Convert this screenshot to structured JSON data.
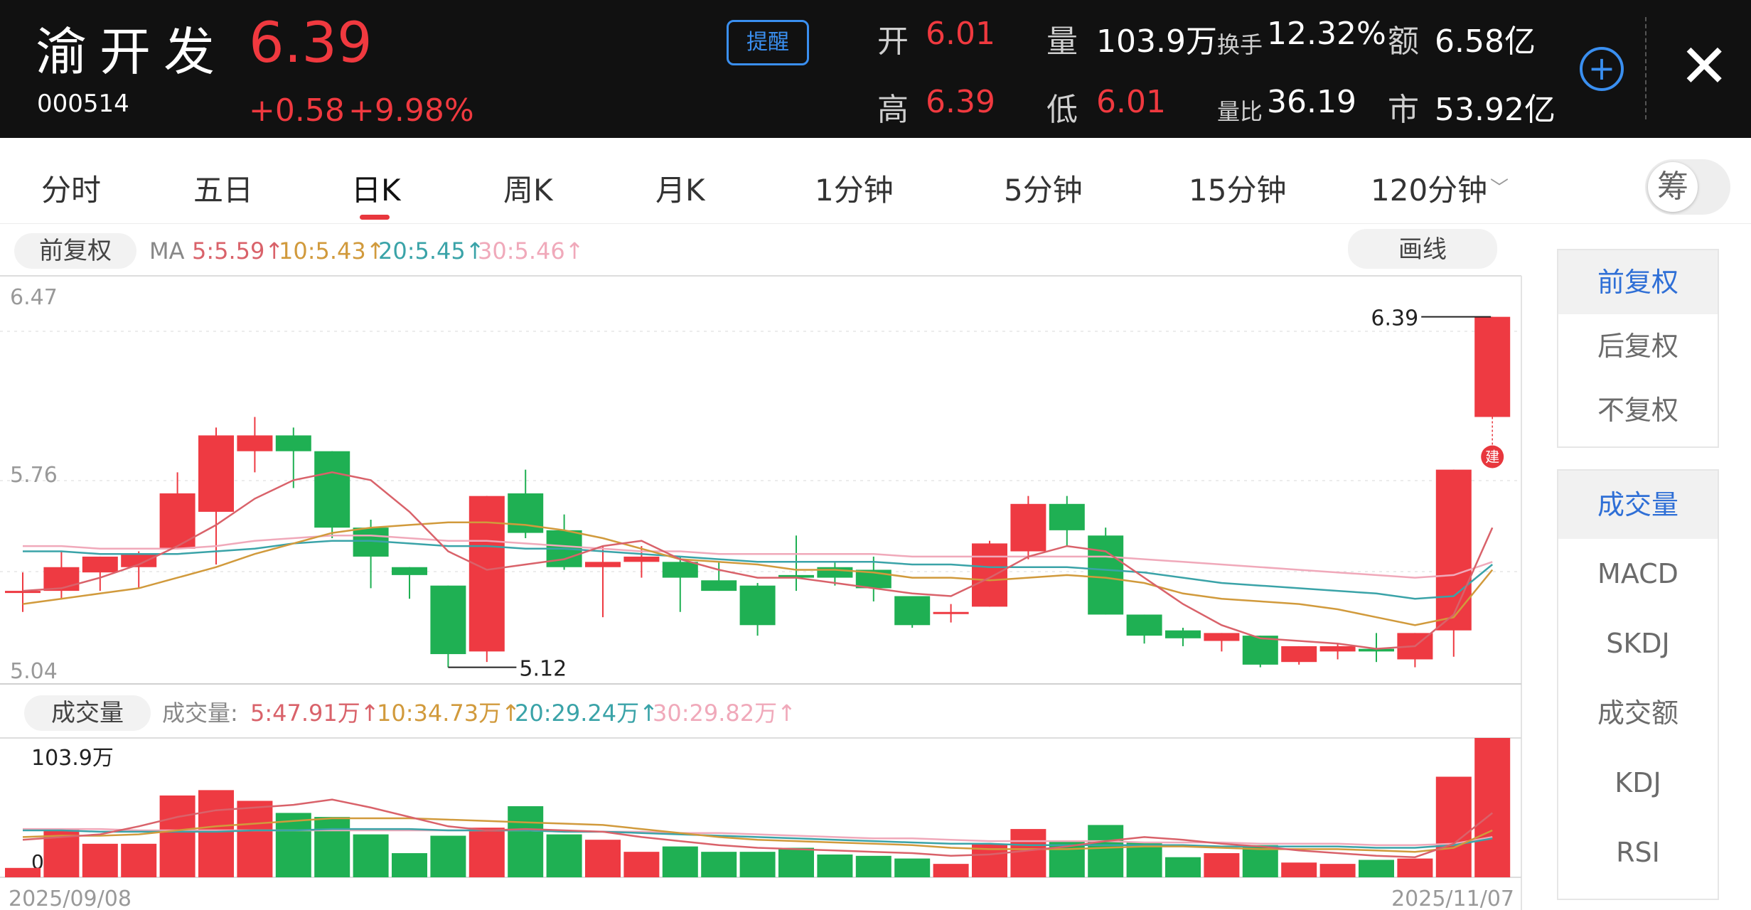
{
  "header": {
    "stock_name": "渝开发",
    "stock_code": "000514",
    "price": "6.39",
    "change": "+0.58",
    "change_pct": "+9.98%",
    "alert_label": "提醒",
    "open_label": "开",
    "open": "6.01",
    "high_label": "高",
    "high": "6.39",
    "volume_label": "量",
    "volume": "103.9万",
    "low_label": "低",
    "low": "6.01",
    "turnover_label": "换手",
    "turnover": "12.32%",
    "vol_ratio_label": "量比",
    "vol_ratio": "36.19",
    "amount_label": "额",
    "amount": "6.58亿",
    "mktcap_label": "市",
    "mktcap": "53.92亿",
    "add_icon": "plus-circle-icon",
    "close_icon": "close-icon"
  },
  "tabs": [
    {
      "label": "分时"
    },
    {
      "label": "五日"
    },
    {
      "label": "日K",
      "active": true
    },
    {
      "label": "周K"
    },
    {
      "label": "月K"
    },
    {
      "label": "1分钟"
    },
    {
      "label": "5分钟"
    },
    {
      "label": "15分钟"
    },
    {
      "label": "120分钟"
    }
  ],
  "chip_toggle_label": "筹",
  "toolbar": {
    "adjust_label": "前复权",
    "draw_label": "画线",
    "ma_prefix": "MA",
    "ma_items": [
      {
        "text": "5:5.59↑",
        "color": "#d9626a"
      },
      {
        "text": "10:5.43↑",
        "color": "#d19a3c"
      },
      {
        "text": "20:5.45↑",
        "color": "#3aa3a8"
      },
      {
        "text": "30:5.46↑",
        "color": "#f0a9ba"
      }
    ],
    "volume_label": "成交量",
    "vol_prefix": "成交量:",
    "vol_items": [
      {
        "text": "5:47.91万↑",
        "color": "#d9626a"
      },
      {
        "text": "10:34.73万↑",
        "color": "#d19a3c"
      },
      {
        "text": "20:29.24万↑",
        "color": "#3aa3a8"
      },
      {
        "text": "30:29.82万↑",
        "color": "#f0a9ba"
      }
    ]
  },
  "colors": {
    "up": "#ee3a42",
    "down": "#1fb053",
    "ma5": "#d9626a",
    "ma10": "#d19a3c",
    "ma20": "#3aa3a8",
    "ma30": "#f0a9ba"
  },
  "chart_data": {
    "type": "candlestick",
    "y_axis_labels": [
      "6.47",
      "5.76",
      "5.04"
    ],
    "ylim": [
      5.04,
      6.47
    ],
    "max_label": "6.39",
    "min_label": "5.12",
    "badge": "建",
    "vol_max_label": "103.9万",
    "vol_zero_label": "0",
    "vol_ylim": [
      0,
      103.9
    ],
    "x_start": "2025/09/08",
    "x_end": "2025/11/07",
    "candles": [
      {
        "o": 5.35,
        "c": 5.35,
        "h": 5.42,
        "l": 5.27,
        "v": 7
      },
      {
        "o": 5.35,
        "c": 5.44,
        "h": 5.5,
        "l": 5.32,
        "v": 36
      },
      {
        "o": 5.42,
        "c": 5.48,
        "h": 5.48,
        "l": 5.35,
        "v": 25
      },
      {
        "o": 5.44,
        "c": 5.49,
        "h": 5.5,
        "l": 5.36,
        "v": 25
      },
      {
        "o": 5.51,
        "c": 5.72,
        "h": 5.8,
        "l": 5.51,
        "v": 61
      },
      {
        "o": 5.65,
        "c": 5.94,
        "h": 5.97,
        "l": 5.45,
        "v": 65
      },
      {
        "o": 5.88,
        "c": 5.94,
        "h": 6.01,
        "l": 5.8,
        "v": 57
      },
      {
        "o": 5.94,
        "c": 5.88,
        "h": 5.97,
        "l": 5.74,
        "v": 48
      },
      {
        "o": 5.88,
        "c": 5.59,
        "h": 5.88,
        "l": 5.55,
        "v": 45
      },
      {
        "o": 5.59,
        "c": 5.48,
        "h": 5.62,
        "l": 5.36,
        "v": 32
      },
      {
        "o": 5.44,
        "c": 5.41,
        "h": 5.44,
        "l": 5.32,
        "v": 18
      },
      {
        "o": 5.37,
        "c": 5.11,
        "h": 5.37,
        "l": 5.06,
        "v": 31
      },
      {
        "o": 5.12,
        "c": 5.71,
        "h": 5.71,
        "l": 5.08,
        "v": 37
      },
      {
        "o": 5.72,
        "c": 5.57,
        "h": 5.81,
        "l": 5.55,
        "v": 53
      },
      {
        "o": 5.58,
        "c": 5.44,
        "h": 5.64,
        "l": 5.43,
        "v": 32
      },
      {
        "o": 5.44,
        "c": 5.46,
        "h": 5.52,
        "l": 5.25,
        "v": 28
      },
      {
        "o": 5.46,
        "c": 5.48,
        "h": 5.52,
        "l": 5.4,
        "v": 19
      },
      {
        "o": 5.46,
        "c": 5.4,
        "h": 5.48,
        "l": 5.27,
        "v": 23
      },
      {
        "o": 5.39,
        "c": 5.35,
        "h": 5.46,
        "l": 5.35,
        "v": 19
      },
      {
        "o": 5.37,
        "c": 5.22,
        "h": 5.38,
        "l": 5.18,
        "v": 19
      },
      {
        "o": 5.41,
        "c": 5.4,
        "h": 5.56,
        "l": 5.35,
        "v": 22
      },
      {
        "o": 5.44,
        "c": 5.4,
        "h": 5.46,
        "l": 5.37,
        "v": 17
      },
      {
        "o": 5.43,
        "c": 5.36,
        "h": 5.48,
        "l": 5.31,
        "v": 16
      },
      {
        "o": 5.33,
        "c": 5.22,
        "h": 5.33,
        "l": 5.21,
        "v": 14
      },
      {
        "o": 5.27,
        "c": 5.27,
        "h": 5.3,
        "l": 5.23,
        "v": 10
      },
      {
        "o": 5.29,
        "c": 5.53,
        "h": 5.54,
        "l": 5.29,
        "v": 25
      },
      {
        "o": 5.5,
        "c": 5.68,
        "h": 5.71,
        "l": 5.47,
        "v": 36
      },
      {
        "o": 5.68,
        "c": 5.58,
        "h": 5.71,
        "l": 5.52,
        "v": 27
      },
      {
        "o": 5.56,
        "c": 5.26,
        "h": 5.59,
        "l": 5.26,
        "v": 39
      },
      {
        "o": 5.26,
        "c": 5.18,
        "h": 5.26,
        "l": 5.15,
        "v": 26
      },
      {
        "o": 5.2,
        "c": 5.17,
        "h": 5.21,
        "l": 5.14,
        "v": 15
      },
      {
        "o": 5.16,
        "c": 5.19,
        "h": 5.19,
        "l": 5.12,
        "v": 18
      },
      {
        "o": 5.18,
        "c": 5.07,
        "h": 5.18,
        "l": 5.06,
        "v": 24
      },
      {
        "o": 5.08,
        "c": 5.14,
        "h": 5.14,
        "l": 5.07,
        "v": 11
      },
      {
        "o": 5.12,
        "c": 5.14,
        "h": 5.15,
        "l": 5.09,
        "v": 10
      },
      {
        "o": 5.13,
        "c": 5.12,
        "h": 5.19,
        "l": 5.08,
        "v": 13
      },
      {
        "o": 5.09,
        "c": 5.19,
        "h": 5.19,
        "l": 5.06,
        "v": 14
      },
      {
        "o": 5.2,
        "c": 5.81,
        "h": 5.81,
        "l": 5.1,
        "v": 75
      },
      {
        "o": 6.01,
        "c": 6.39,
        "h": 6.39,
        "l": 6.01,
        "v": 103.9
      }
    ],
    "ma5": [
      5.35,
      5.36,
      5.4,
      5.45,
      5.52,
      5.6,
      5.7,
      5.77,
      5.8,
      5.77,
      5.65,
      5.5,
      5.43,
      5.45,
      5.47,
      5.52,
      5.54,
      5.47,
      5.43,
      5.4,
      5.4,
      5.38,
      5.36,
      5.34,
      5.33,
      5.4,
      5.48,
      5.52,
      5.5,
      5.4,
      5.3,
      5.22,
      5.17,
      5.16,
      5.15,
      5.13,
      5.14,
      5.26,
      5.59
    ],
    "ma10": [
      5.3,
      5.32,
      5.34,
      5.36,
      5.4,
      5.44,
      5.49,
      5.53,
      5.57,
      5.59,
      5.6,
      5.61,
      5.61,
      5.6,
      5.58,
      5.55,
      5.51,
      5.47,
      5.46,
      5.45,
      5.43,
      5.43,
      5.42,
      5.4,
      5.4,
      5.39,
      5.4,
      5.41,
      5.4,
      5.38,
      5.34,
      5.32,
      5.31,
      5.3,
      5.28,
      5.25,
      5.22,
      5.25,
      5.43
    ],
    "ma20": [
      5.5,
      5.5,
      5.49,
      5.49,
      5.49,
      5.5,
      5.51,
      5.53,
      5.54,
      5.54,
      5.53,
      5.52,
      5.52,
      5.51,
      5.51,
      5.5,
      5.49,
      5.48,
      5.47,
      5.46,
      5.46,
      5.46,
      5.46,
      5.45,
      5.45,
      5.44,
      5.44,
      5.44,
      5.43,
      5.42,
      5.4,
      5.38,
      5.37,
      5.36,
      5.35,
      5.34,
      5.32,
      5.33,
      5.45
    ],
    "ma30": [
      5.52,
      5.52,
      5.51,
      5.51,
      5.51,
      5.52,
      5.54,
      5.55,
      5.56,
      5.56,
      5.55,
      5.54,
      5.54,
      5.53,
      5.52,
      5.51,
      5.5,
      5.5,
      5.49,
      5.49,
      5.49,
      5.49,
      5.49,
      5.48,
      5.48,
      5.48,
      5.48,
      5.48,
      5.48,
      5.47,
      5.46,
      5.45,
      5.44,
      5.43,
      5.42,
      5.41,
      5.4,
      5.41,
      5.46
    ],
    "vma5": [
      28,
      30,
      32,
      38,
      45,
      50,
      52,
      54,
      58,
      52,
      45,
      38,
      35,
      36,
      35,
      34,
      30,
      27,
      24,
      22,
      21,
      20,
      19,
      18,
      16,
      17,
      20,
      23,
      27,
      30,
      28,
      25,
      23,
      20,
      18,
      16,
      15,
      25,
      48
    ],
    "vma10": [
      30,
      31,
      31,
      32,
      35,
      38,
      40,
      42,
      44,
      44,
      44,
      43,
      42,
      41,
      40,
      39,
      36,
      33,
      30,
      28,
      27,
      26,
      25,
      24,
      22,
      21,
      21,
      21,
      22,
      23,
      23,
      22,
      21,
      21,
      21,
      20,
      19,
      22,
      35
    ],
    "vma20": [
      35,
      35,
      34,
      34,
      34,
      34,
      35,
      35,
      36,
      36,
      36,
      35,
      35,
      35,
      34,
      34,
      33,
      32,
      31,
      30,
      29,
      28,
      27,
      26,
      25,
      25,
      24,
      24,
      24,
      24,
      24,
      23,
      23,
      23,
      23,
      22,
      22,
      24,
      29
    ],
    "vma30": [
      36,
      36,
      36,
      35,
      35,
      35,
      35,
      35,
      35,
      35,
      35,
      35,
      35,
      35,
      34,
      34,
      34,
      33,
      33,
      32,
      31,
      30,
      29,
      29,
      28,
      27,
      27,
      27,
      27,
      26,
      26,
      26,
      25,
      25,
      25,
      24,
      24,
      25,
      30
    ]
  },
  "side_panel": {
    "adjust_items": [
      "前复权",
      "后复权",
      "不复权"
    ],
    "indicator_items": [
      "成交量",
      "MACD",
      "SKDJ",
      "成交额",
      "KDJ",
      "RSI"
    ]
  }
}
